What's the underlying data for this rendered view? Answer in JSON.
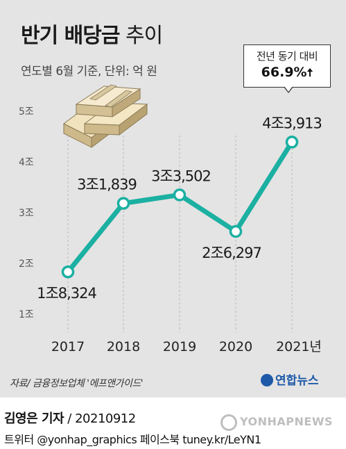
{
  "header": {
    "title_bold": "반기 배당금",
    "title_light": "추이",
    "subtitle": "연도별 6월 기준, 단위: 억 원"
  },
  "callout": {
    "line1": "전년 동기 대비",
    "value": "66.9%",
    "arrow": "🠅"
  },
  "chart_data": {
    "type": "line",
    "title": "반기 배당금 추이",
    "subtitle": "연도별 6월 기준, 단위: 억 원",
    "categories": [
      "2017",
      "2018",
      "2019",
      "2020",
      "2021년"
    ],
    "values": [
      18324,
      31839,
      33502,
      26297,
      43913
    ],
    "data_labels": [
      "1조8,324",
      "3조1,839",
      "3조3,502",
      "2조6,297",
      "4조3,913"
    ],
    "y_ticks": [
      10000,
      20000,
      30000,
      40000,
      50000
    ],
    "y_tick_labels": [
      "1조",
      "2조",
      "3조",
      "4조",
      "5조"
    ],
    "ylim": [
      10000,
      50000
    ],
    "grid": "vertical dashed lines at each year",
    "line_color": "#1bb0a2"
  },
  "footer": {
    "source": "자료/ 금융정보업체 '에프앤가이드'",
    "logo": "연합뉴스",
    "reporter": "김영은 기자",
    "date": " / 20210912",
    "social": "트위터 @yonhap_graphics  페이스북 tuney.kr/LeYN1",
    "watermark": "YONHAPNEWS"
  }
}
